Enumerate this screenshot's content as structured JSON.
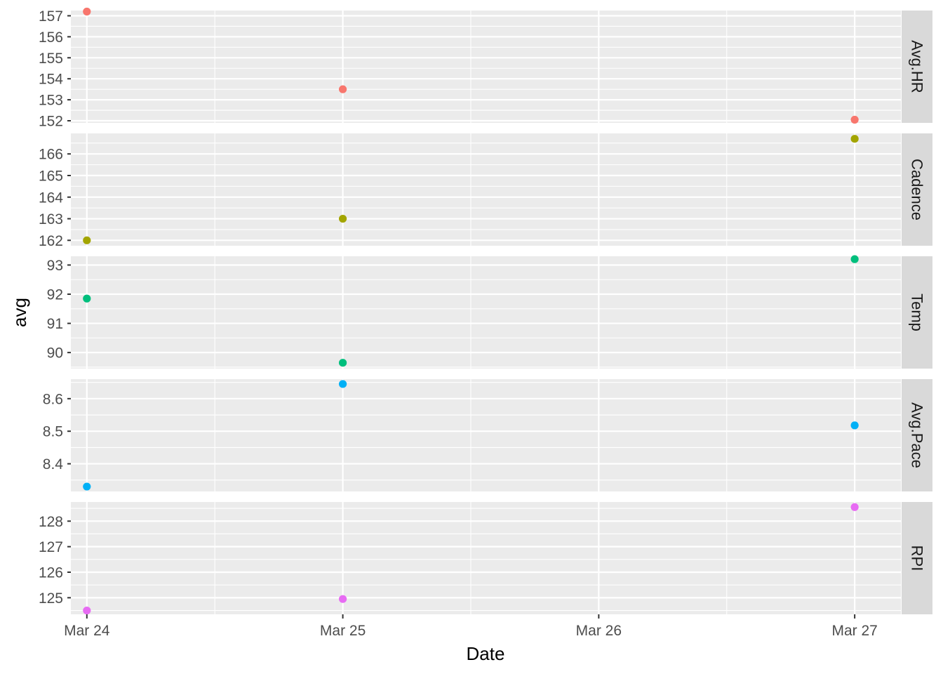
{
  "chart_data": {
    "type": "scatter",
    "facet": "rows",
    "xlabel": "Date",
    "ylabel": "avg",
    "x_ticks": [
      "Mar 24",
      "Mar 25",
      "Mar 26",
      "Mar 27"
    ],
    "x_dates": [
      "2023-03-24",
      "2023-03-25",
      "2023-03-26",
      "2023-03-27"
    ],
    "xlim": [
      "2023-03-23 22:30",
      "2023-03-27 04:20"
    ],
    "grid": true,
    "legend": "none",
    "panels": [
      {
        "name": "Avg.HR",
        "color": "#F8766D",
        "ylim": [
          151.9,
          157.25
        ],
        "y_ticks": [
          152,
          153,
          154,
          155,
          156,
          157
        ],
        "points": [
          {
            "x": "2023-03-24",
            "y": 157.2
          },
          {
            "x": "2023-03-25",
            "y": 153.5
          },
          {
            "x": "2023-03-27",
            "y": 152.05
          }
        ]
      },
      {
        "name": "Cadence",
        "color": "#A3A500",
        "ylim": [
          161.75,
          166.95
        ],
        "y_ticks": [
          162,
          163,
          164,
          165,
          166
        ],
        "points": [
          {
            "x": "2023-03-24",
            "y": 162.0
          },
          {
            "x": "2023-03-25",
            "y": 163.0
          },
          {
            "x": "2023-03-27",
            "y": 166.7
          }
        ]
      },
      {
        "name": "Temp",
        "color": "#00BF7D",
        "ylim": [
          89.45,
          93.3
        ],
        "y_ticks": [
          90,
          91,
          92,
          93
        ],
        "points": [
          {
            "x": "2023-03-24",
            "y": 91.85
          },
          {
            "x": "2023-03-25",
            "y": 89.65
          },
          {
            "x": "2023-03-27",
            "y": 93.2
          }
        ]
      },
      {
        "name": "Avg.Pace",
        "color": "#00B0F6",
        "ylim": [
          8.315,
          8.66
        ],
        "y_ticks": [
          8.4,
          8.5,
          8.6
        ],
        "points": [
          {
            "x": "2023-03-24",
            "y": 8.33
          },
          {
            "x": "2023-03-25",
            "y": 8.645
          },
          {
            "x": "2023-03-27",
            "y": 8.518
          }
        ]
      },
      {
        "name": "RPI",
        "color": "#E76BF3",
        "ylim": [
          124.35,
          128.75
        ],
        "y_ticks": [
          125,
          126,
          127,
          128
        ],
        "points": [
          {
            "x": "2023-03-24",
            "y": 124.5
          },
          {
            "x": "2023-03-25",
            "y": 124.95
          },
          {
            "x": "2023-03-27",
            "y": 128.55
          }
        ]
      }
    ]
  }
}
